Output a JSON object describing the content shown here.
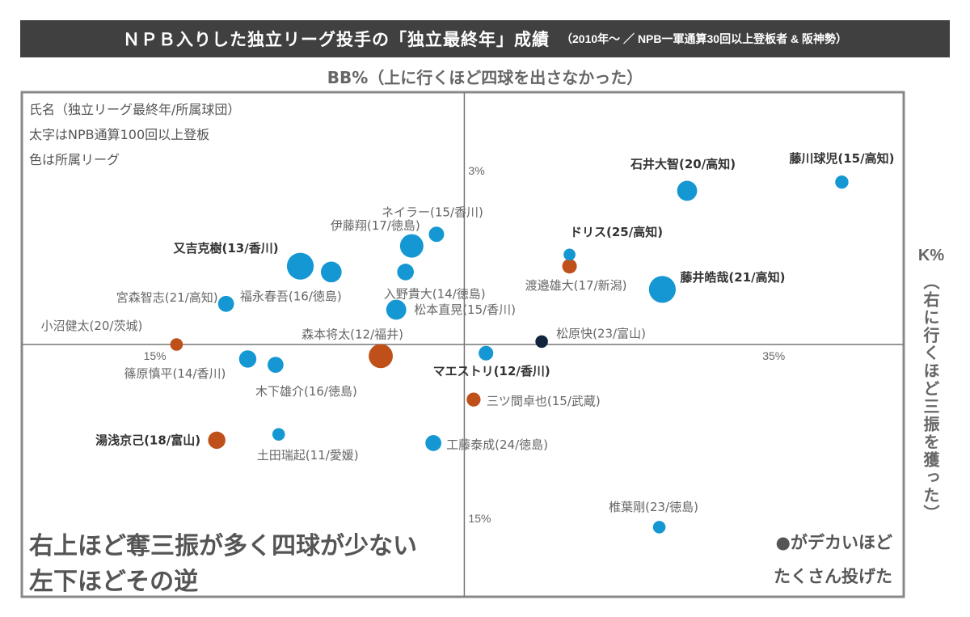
{
  "title": {
    "main": "ＮＰＢ入りした独立リーグ投手の「独立最終年」成績",
    "sub": "（2010年～ ／ NPB一軍通算30回以上登板者 & 阪神勢）"
  },
  "legend_notes": [
    "氏名（独立リーグ最終年/所属球団）",
    "太字はNPB通算100回以上登板",
    "色は所属リーグ"
  ],
  "bottom_left_note": [
    "右上ほど奪三振が多く四球が少ない",
    "左下ほどその逆"
  ],
  "bottom_right_note": [
    "●がデカいほど",
    "たくさん投げた"
  ],
  "colors": {
    "shikoku": "#1597d3",
    "bc": "#c0501a",
    "other": "#10243d",
    "axis": "#777777",
    "frame": "#888888",
    "title_bg": "#404040"
  },
  "chart_data": {
    "type": "scatter",
    "title": "ＮＰＢ入りした独立リーグ投手の「独立最終年」成績",
    "xlabel": "K%",
    "xlabel_sub": "（右に行くほど三振を獲った）",
    "ylabel": "BB%（上に行くほど四球を出さなかった）",
    "x_axis": {
      "unit": "%",
      "ticks": [
        {
          "value": 15,
          "label": "15%"
        },
        {
          "value": 35,
          "label": "35%"
        }
      ],
      "cross_at": 25,
      "range": [
        10.7,
        39.2
      ]
    },
    "y_axis": {
      "unit": "%",
      "inverted": true,
      "ticks": [
        {
          "value": 3,
          "label": "3%"
        },
        {
          "value": 15,
          "label": "15%"
        }
      ],
      "cross_at": 9,
      "range": [
        0.3,
        17.7
      ]
    },
    "size_meaning": "innings pitched (relative)",
    "points": [
      {
        "label": "藤川球児(15/高知)",
        "k": 37.2,
        "bb": 3.4,
        "size": 1,
        "league": "shikoku",
        "bold": true
      },
      {
        "label": "石井大智(20/高知)",
        "k": 32.2,
        "bb": 3.7,
        "size": 2,
        "league": "shikoku",
        "bold": true
      },
      {
        "label": "ネイラー(15/香川)",
        "k": 24.1,
        "bb": 5.2,
        "size": 1.3,
        "league": "shikoku",
        "bold": false
      },
      {
        "label": "伊藤翔(17/徳島)",
        "k": 23.3,
        "bb": 5.6,
        "size": 2.5,
        "league": "shikoku",
        "bold": false
      },
      {
        "label": "又吉克樹(13/香川)",
        "k": 19.7,
        "bb": 6.3,
        "size": 3,
        "league": "shikoku",
        "bold": true
      },
      {
        "label": "福永春吾(16/徳島)",
        "k": 20.7,
        "bb": 6.5,
        "size": 2.1,
        "league": "shikoku",
        "bold": false
      },
      {
        "label": "入野貴大(14/徳島)",
        "k": 23.1,
        "bb": 6.5,
        "size": 1.5,
        "league": "shikoku",
        "bold": false
      },
      {
        "label": "ドリス(25/高知)",
        "k": 28.4,
        "bb": 5.9,
        "size": 0.8,
        "league": "shikoku",
        "bold": true
      },
      {
        "label": "渡邉雄大(17/新潟)",
        "k": 28.4,
        "bb": 6.3,
        "size": 1.2,
        "league": "bc",
        "bold": false
      },
      {
        "label": "藤井皓哉(21/高知)",
        "k": 31.4,
        "bb": 7.1,
        "size": 3,
        "league": "shikoku",
        "bold": true
      },
      {
        "label": "宮森智志(21/高知)",
        "k": 17.3,
        "bb": 7.6,
        "size": 1.4,
        "league": "shikoku",
        "bold": false
      },
      {
        "label": "松本直晃(15/香川)",
        "k": 22.8,
        "bb": 7.8,
        "size": 2,
        "league": "shikoku",
        "bold": false
      },
      {
        "label": "松原快(23/富山)",
        "k": 27.5,
        "bb": 8.9,
        "size": 0.9,
        "league": "other",
        "bold": false
      },
      {
        "label": "小沼健太(20/茨城)",
        "k": 15.7,
        "bb": 9.0,
        "size": 0.9,
        "league": "bc",
        "bold": false
      },
      {
        "label": "森本将太(12/福井)",
        "k": 22.3,
        "bb": 9.4,
        "size": 2.6,
        "league": "bc",
        "bold": false
      },
      {
        "label": "マエストリ(12/香川)",
        "k": 25.7,
        "bb": 9.3,
        "size": 1.2,
        "league": "shikoku",
        "bold": true
      },
      {
        "label": "篠原慎平(14/香川)",
        "k": 18.0,
        "bb": 9.5,
        "size": 1.6,
        "league": "shikoku",
        "bold": false
      },
      {
        "label": "木下雄介(16/徳島)",
        "k": 18.9,
        "bb": 9.7,
        "size": 1.4,
        "league": "shikoku",
        "bold": false
      },
      {
        "label": "三ツ間卓也(15/武蔵)",
        "k": 25.3,
        "bb": 10.9,
        "size": 1.1,
        "league": "bc",
        "bold": false
      },
      {
        "label": "湯浅京己(18/富山)",
        "k": 17.0,
        "bb": 12.3,
        "size": 1.6,
        "league": "bc",
        "bold": true
      },
      {
        "label": "土田瑞起(11/愛媛)",
        "k": 19.0,
        "bb": 12.1,
        "size": 0.9,
        "league": "shikoku",
        "bold": false
      },
      {
        "label": "工藤泰成(24/徳島)",
        "k": 24.0,
        "bb": 12.4,
        "size": 1.4,
        "league": "shikoku",
        "bold": false
      },
      {
        "label": "椎葉剛(23/徳島)",
        "k": 31.3,
        "bb": 15.3,
        "size": 0.9,
        "league": "shikoku",
        "bold": false
      }
    ]
  }
}
